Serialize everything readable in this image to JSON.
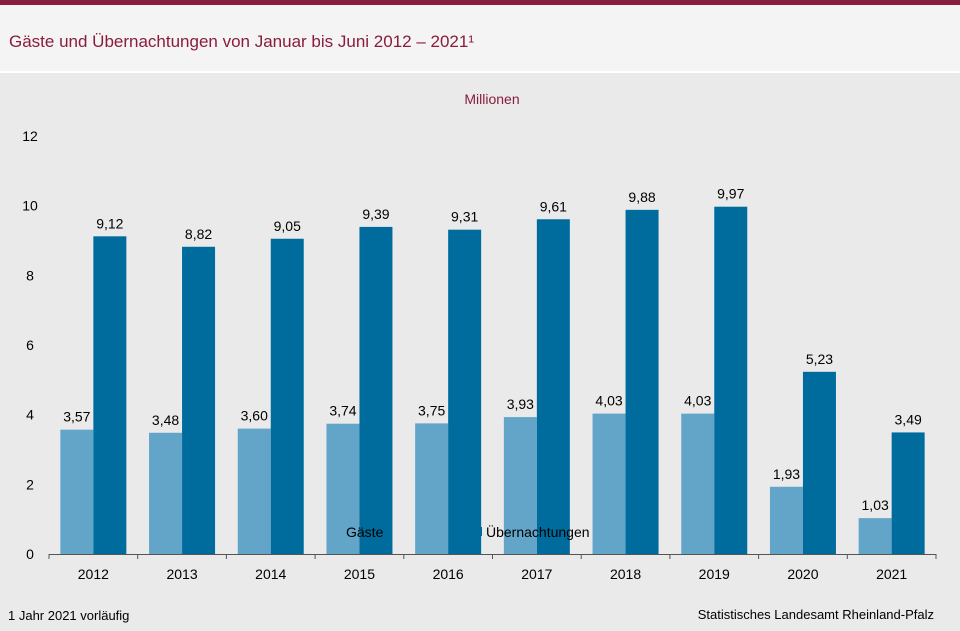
{
  "header": {
    "title": "Gäste und Übernachtungen von Januar bis Juni 2012 – 2021¹"
  },
  "footer": {
    "footnote": "1 Jahr 2021 vorläufig",
    "source": "Statistisches Landesamt Rheinland-Pfalz"
  },
  "colors": {
    "brand": "#8a1c3c",
    "gaeste": "#63a5c9",
    "uebernachtungen": "#006c9e"
  },
  "chart_data": {
    "type": "bar",
    "title": "Gäste und Übernachtungen von Januar bis Juni 2012 – 2021¹",
    "unit_label": "Millionen",
    "categories": [
      "2012",
      "2013",
      "2014",
      "2015",
      "2016",
      "2017",
      "2018",
      "2019",
      "2020",
      "2021"
    ],
    "series": [
      {
        "name": "Gäste",
        "values": [
          3.57,
          3.48,
          3.6,
          3.74,
          3.75,
          3.93,
          4.03,
          4.03,
          1.93,
          1.03
        ],
        "labels": [
          "3,57",
          "3,48",
          "3,60",
          "3,74",
          "3,75",
          "3,93",
          "4,03",
          "4,03",
          "1,93",
          "1,03"
        ],
        "color": "#63a5c9"
      },
      {
        "name": "Übernachtungen",
        "values": [
          9.12,
          8.82,
          9.05,
          9.39,
          9.31,
          9.61,
          9.88,
          9.97,
          5.23,
          3.49
        ],
        "labels": [
          "9,12",
          "8,82",
          "9,05",
          "9,39",
          "9,31",
          "9,61",
          "9,88",
          "9,97",
          "5,23",
          "3,49"
        ],
        "color": "#006c9e"
      }
    ],
    "yticks": [
      "0",
      "2",
      "4",
      "6",
      "8",
      "10",
      "12"
    ],
    "ylim": [
      0,
      12
    ],
    "grid": false,
    "legend": "bottom-center"
  }
}
